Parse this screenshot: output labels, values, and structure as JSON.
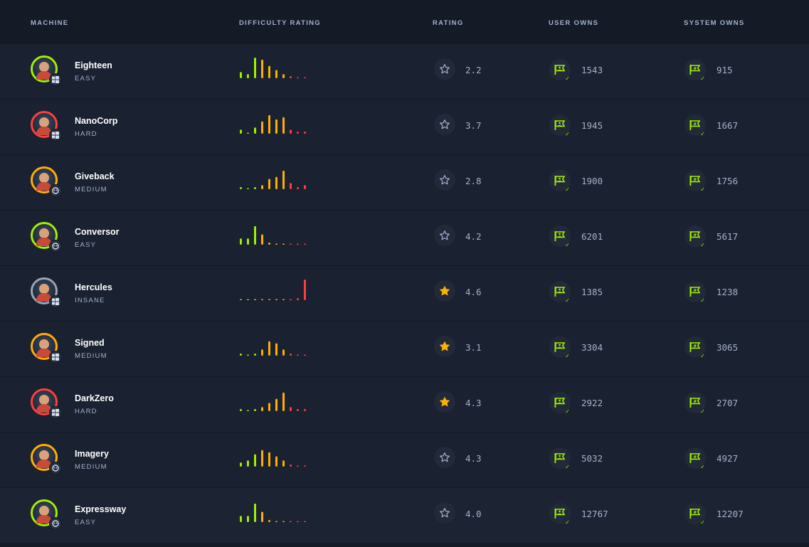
{
  "colors": {
    "background": "#141a26",
    "row": "#1a2130",
    "text_muted": "#a4b1cd",
    "accent_green": "#9fef00",
    "star_filled": "#ffaf00",
    "bar_green": "#9fef00",
    "bar_orange": "#ffaf00",
    "bar_red": "#ff3e3e"
  },
  "headers": {
    "machine": "MACHINE",
    "difficulty_rating": "DIFFICULTY RATING",
    "rating": "RATING",
    "user_owns": "USER OWNS",
    "system_owns": "SYSTEM OWNS"
  },
  "machines": [
    {
      "name": "Eighteen",
      "difficulty": "EASY",
      "os": "windows-icon",
      "rating": "2.2",
      "starred": false,
      "user_owns": "1543",
      "system_owns": "915",
      "avatar_ring": "#9fef00",
      "difficulty_bars": [
        3,
        2,
        10,
        9,
        6,
        4,
        2,
        1,
        0,
        0
      ]
    },
    {
      "name": "NanoCorp",
      "difficulty": "HARD",
      "os": "windows-icon",
      "rating": "3.7",
      "starred": false,
      "user_owns": "1945",
      "system_owns": "1667",
      "avatar_ring": "#ff3e3e",
      "difficulty_bars": [
        2,
        0,
        3,
        6,
        9,
        7,
        8,
        2,
        1,
        1
      ]
    },
    {
      "name": "Giveback",
      "difficulty": "MEDIUM",
      "os": "linux-icon",
      "rating": "2.8",
      "starred": false,
      "user_owns": "1900",
      "system_owns": "1756",
      "avatar_ring": "#ffaf00",
      "difficulty_bars": [
        1,
        0,
        1,
        2,
        5,
        6,
        9,
        3,
        1,
        2
      ]
    },
    {
      "name": "Conversor",
      "difficulty": "EASY",
      "os": "linux-icon",
      "rating": "4.2",
      "starred": false,
      "user_owns": "6201",
      "system_owns": "5617",
      "avatar_ring": "#9fef00",
      "difficulty_bars": [
        3,
        3,
        9,
        5,
        1,
        0,
        0,
        0,
        0,
        0
      ]
    },
    {
      "name": "Hercules",
      "difficulty": "INSANE",
      "os": "windows-icon",
      "rating": "4.6",
      "starred": true,
      "user_owns": "1385",
      "system_owns": "1238",
      "avatar_ring": "#9aa5b8",
      "difficulty_bars": [
        0,
        0,
        0,
        0,
        0,
        0,
        0,
        0,
        1,
        10
      ]
    },
    {
      "name": "Signed",
      "difficulty": "MEDIUM",
      "os": "windows-icon",
      "rating": "3.1",
      "starred": true,
      "user_owns": "3304",
      "system_owns": "3065",
      "avatar_ring": "#ffaf00",
      "difficulty_bars": [
        1,
        0,
        1,
        3,
        7,
        6,
        3,
        1,
        0,
        0
      ]
    },
    {
      "name": "DarkZero",
      "difficulty": "HARD",
      "os": "windows-icon",
      "rating": "4.3",
      "starred": true,
      "user_owns": "2922",
      "system_owns": "2707",
      "avatar_ring": "#ff3e3e",
      "difficulty_bars": [
        1,
        0,
        1,
        2,
        4,
        6,
        9,
        2,
        1,
        1
      ]
    },
    {
      "name": "Imagery",
      "difficulty": "MEDIUM",
      "os": "linux-icon",
      "rating": "4.3",
      "starred": false,
      "user_owns": "5032",
      "system_owns": "4927",
      "avatar_ring": "#ffaf00",
      "difficulty_bars": [
        2,
        3,
        6,
        8,
        7,
        5,
        3,
        1,
        0,
        0
      ]
    },
    {
      "name": "Expressway",
      "difficulty": "EASY",
      "os": "linux-icon",
      "rating": "4.0",
      "starred": false,
      "user_owns": "12767",
      "system_owns": "12207",
      "avatar_ring": "#9fef00",
      "difficulty_bars": [
        3,
        3,
        9,
        5,
        1,
        0,
        0,
        0,
        0,
        0
      ]
    }
  ]
}
